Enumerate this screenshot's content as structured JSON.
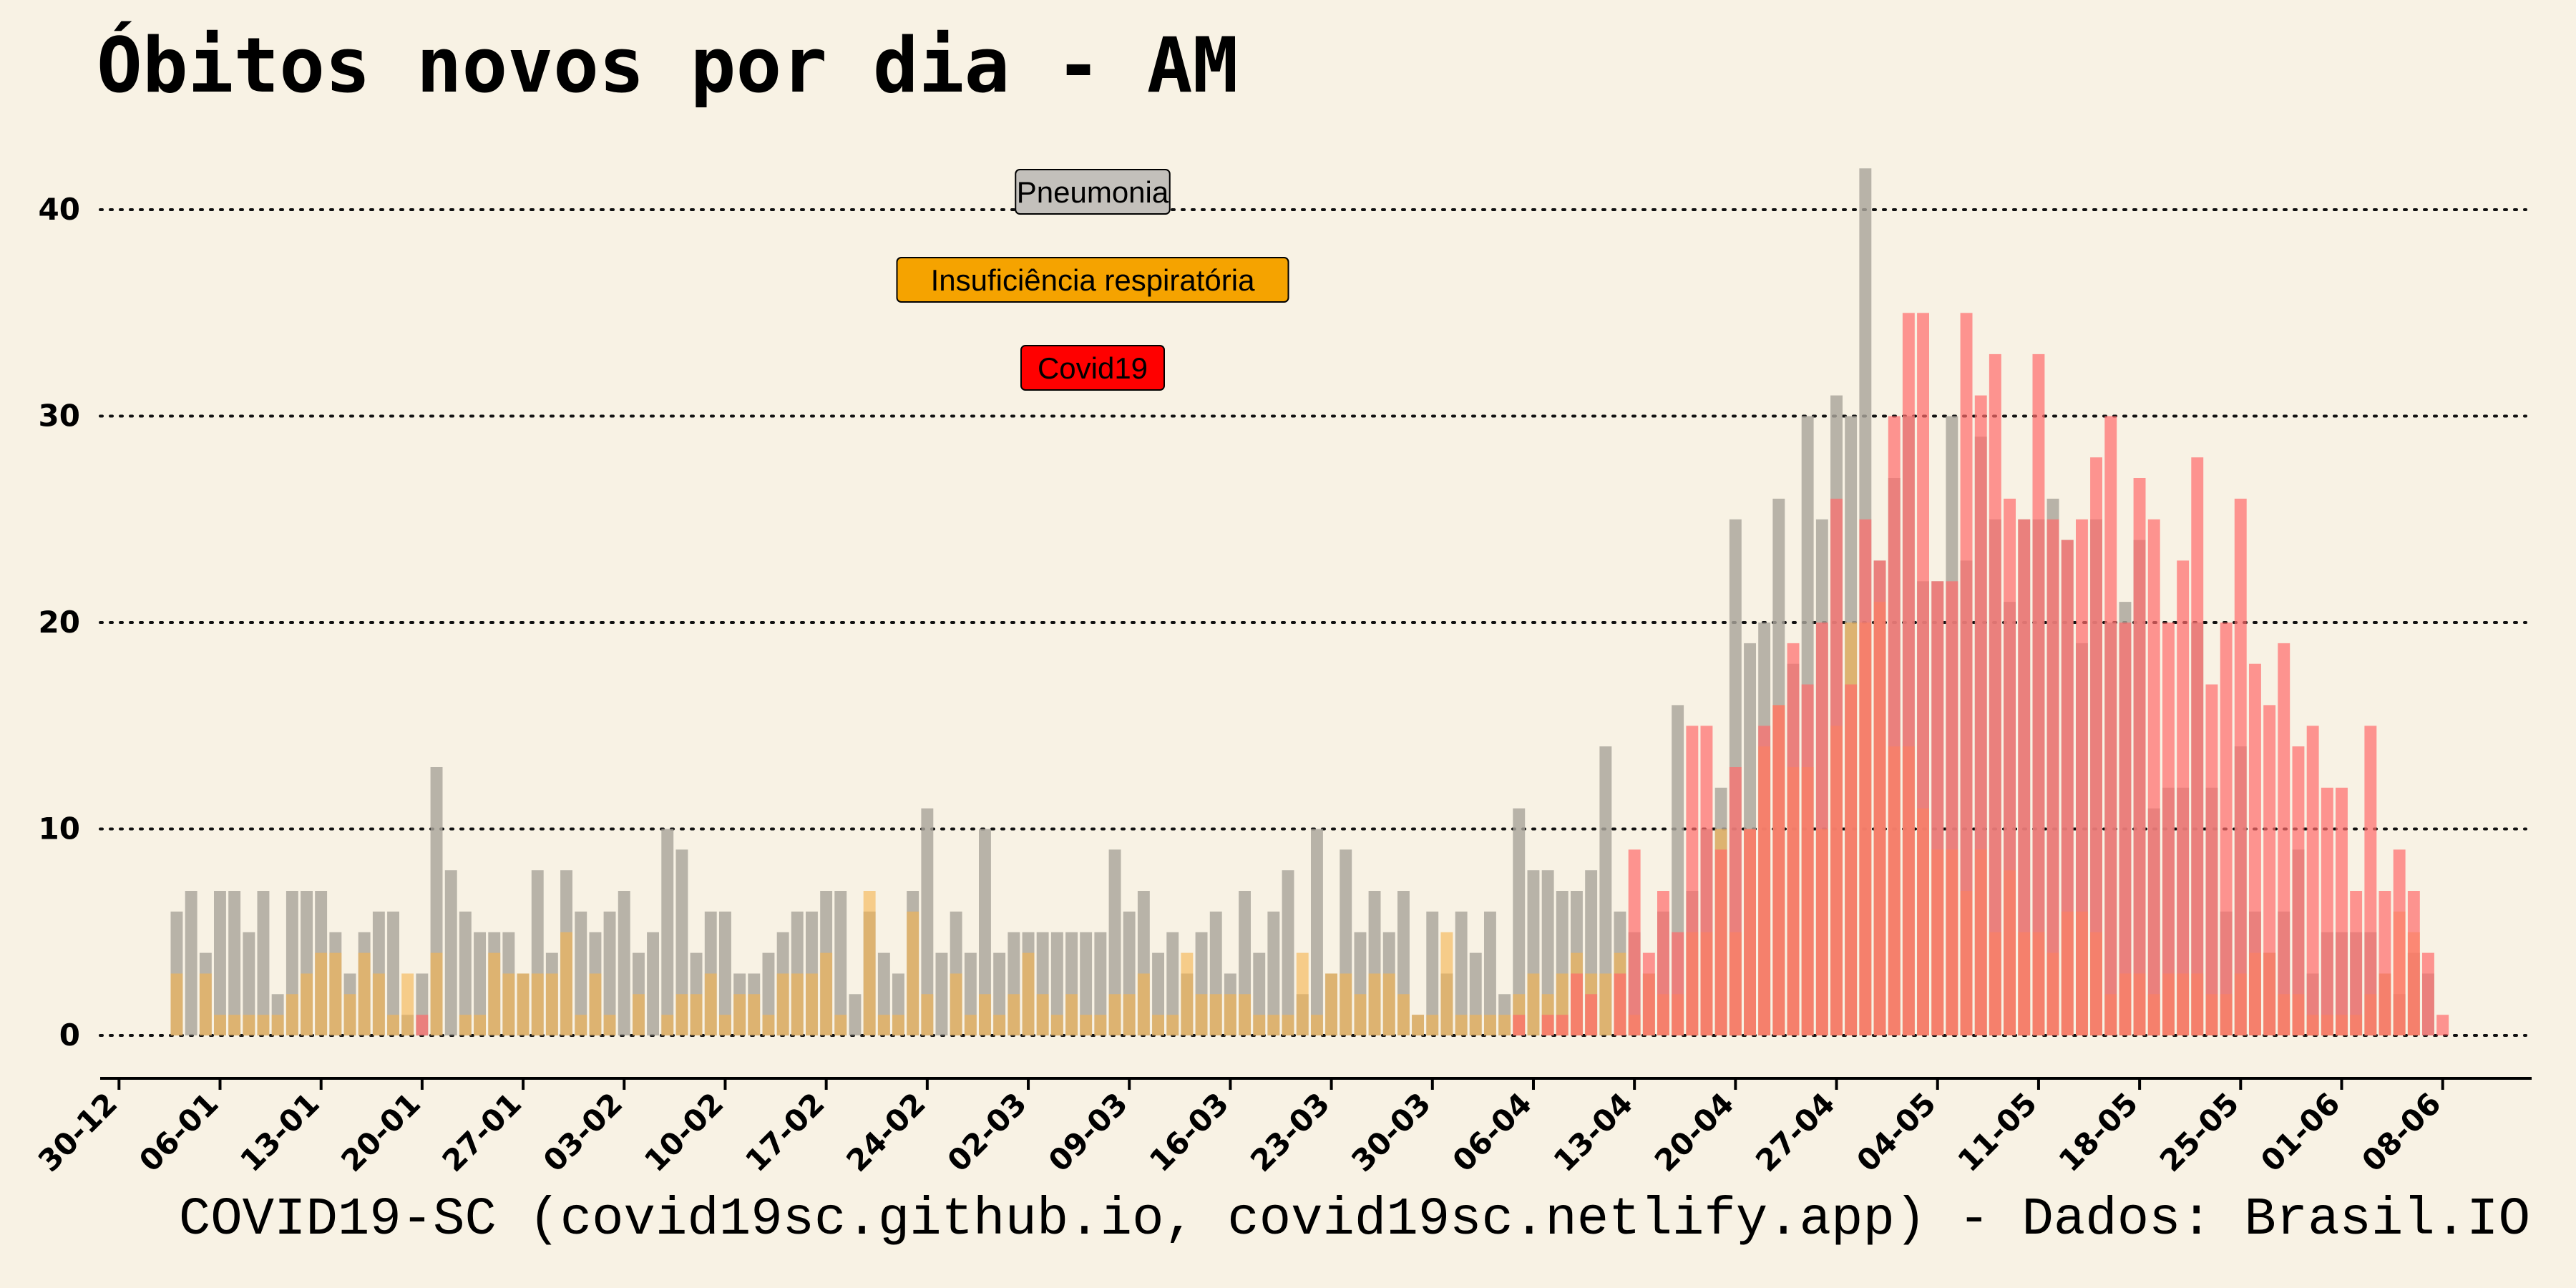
{
  "title": "Óbitos novos por dia -  AM",
  "caption": "COVID19-SC (covid19sc.github.io, covid19sc.netlify.app)   -  Dados: Brasil.IO",
  "chart_data": {
    "type": "bar",
    "overlay": true,
    "start_date": "2020-01-03",
    "x_ticks": [
      "30-12",
      "06-01",
      "13-01",
      "20-01",
      "27-01",
      "03-02",
      "10-02",
      "17-02",
      "24-02",
      "02-03",
      "09-03",
      "16-03",
      "23-03",
      "30-03",
      "06-04",
      "13-04",
      "20-04",
      "27-04",
      "04-05",
      "11-05",
      "18-05",
      "25-05",
      "01-06",
      "08-06"
    ],
    "y_ticks": [
      0,
      10,
      20,
      30,
      40
    ],
    "ylim": [
      0,
      42
    ],
    "grid": "horizontal dotted",
    "legend_placement": "top-center",
    "series": [
      {
        "name": "Pneumonia",
        "color": "#aaa59b",
        "values": [
          6,
          7,
          4,
          7,
          7,
          5,
          7,
          2,
          7,
          7,
          7,
          5,
          3,
          5,
          6,
          6,
          1,
          3,
          13,
          8,
          6,
          5,
          5,
          5,
          3,
          8,
          4,
          8,
          6,
          5,
          6,
          7,
          4,
          5,
          10,
          9,
          4,
          6,
          6,
          3,
          3,
          4,
          5,
          6,
          6,
          7,
          7,
          2,
          6,
          4,
          3,
          7,
          11,
          4,
          6,
          4,
          10,
          4,
          5,
          5,
          5,
          5,
          5,
          5,
          5,
          9,
          6,
          7,
          4,
          5,
          3,
          5,
          6,
          3,
          7,
          4,
          6,
          8,
          2,
          10,
          3,
          9,
          5,
          7,
          5,
          7,
          1,
          6,
          3,
          6,
          4,
          6,
          2,
          11,
          8,
          8,
          7,
          7,
          8,
          14,
          6,
          5,
          3,
          6,
          16,
          7,
          10,
          12,
          25,
          19,
          20,
          26,
          18,
          30,
          25,
          31,
          30,
          42,
          23,
          27,
          30,
          22,
          22,
          30,
          23,
          29,
          25,
          21,
          25,
          25,
          26,
          24,
          19,
          25,
          20,
          21,
          24,
          11,
          12,
          12,
          20,
          12,
          6,
          14,
          6,
          4,
          6,
          9,
          3,
          5,
          5,
          5,
          5,
          3,
          2,
          4,
          3,
          0
        ]
      },
      {
        "name": "Insuficiência respiratória",
        "color": "#f5b34c",
        "values": [
          3,
          0,
          3,
          1,
          1,
          1,
          1,
          1,
          2,
          3,
          4,
          4,
          2,
          4,
          3,
          1,
          3,
          0,
          4,
          0,
          1,
          1,
          4,
          3,
          3,
          3,
          3,
          5,
          1,
          3,
          1,
          0,
          2,
          0,
          1,
          2,
          2,
          3,
          1,
          2,
          2,
          1,
          3,
          3,
          3,
          4,
          1,
          0,
          7,
          1,
          1,
          6,
          2,
          0,
          3,
          1,
          2,
          1,
          2,
          4,
          2,
          1,
          2,
          1,
          1,
          2,
          2,
          3,
          1,
          1,
          4,
          2,
          2,
          2,
          2,
          1,
          1,
          1,
          4,
          1,
          3,
          3,
          2,
          3,
          3,
          2,
          1,
          1,
          5,
          1,
          1,
          1,
          1,
          2,
          3,
          2,
          3,
          4,
          3,
          3,
          4,
          1,
          3,
          2,
          2,
          5,
          5,
          10,
          5,
          10,
          14,
          16,
          13,
          13,
          10,
          15,
          20,
          20,
          21,
          14,
          14,
          11,
          9,
          9,
          7,
          9,
          5,
          8,
          5,
          5,
          4,
          6,
          6,
          5,
          2,
          3,
          3,
          2,
          3,
          3,
          3,
          2,
          2,
          3,
          4,
          4,
          2,
          2,
          1,
          1,
          1,
          1,
          2,
          3,
          6,
          5,
          0,
          0
        ]
      },
      {
        "name": "Covid19",
        "color": "#ff6b6b",
        "values": [
          0,
          0,
          0,
          0,
          0,
          0,
          0,
          0,
          0,
          0,
          0,
          0,
          0,
          0,
          0,
          0,
          0,
          1,
          0,
          0,
          0,
          0,
          0,
          0,
          0,
          0,
          0,
          0,
          0,
          0,
          0,
          0,
          0,
          0,
          0,
          0,
          0,
          0,
          0,
          0,
          0,
          0,
          0,
          0,
          0,
          0,
          0,
          0,
          0,
          0,
          0,
          0,
          0,
          0,
          0,
          0,
          0,
          0,
          0,
          0,
          0,
          0,
          0,
          0,
          0,
          0,
          0,
          0,
          0,
          0,
          0,
          0,
          0,
          0,
          0,
          0,
          0,
          0,
          0,
          0,
          0,
          0,
          0,
          0,
          0,
          0,
          0,
          0,
          0,
          0,
          0,
          0,
          0,
          1,
          0,
          1,
          1,
          3,
          2,
          0,
          3,
          9,
          4,
          7,
          5,
          15,
          15,
          9,
          13,
          10,
          15,
          16,
          19,
          17,
          20,
          26,
          17,
          25,
          23,
          30,
          35,
          35,
          22,
          22,
          35,
          31,
          33,
          26,
          25,
          33,
          25,
          24,
          25,
          28,
          30,
          20,
          27,
          25,
          20,
          23,
          28,
          17,
          20,
          26,
          18,
          16,
          19,
          14,
          15,
          12,
          12,
          7,
          15,
          7,
          9,
          7,
          4,
          1
        ]
      }
    ]
  }
}
